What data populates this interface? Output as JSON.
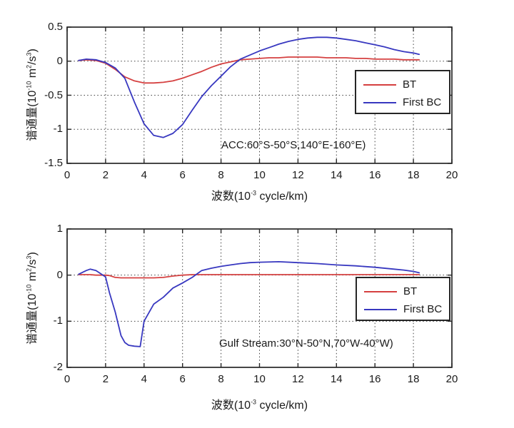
{
  "figure": {
    "background": "#ffffff",
    "axis_color": "#262626",
    "grid_color": "#3f3f3f",
    "text_color": "#1a1a1a"
  },
  "chart_data": [
    {
      "type": "line",
      "position": "top",
      "title": "",
      "xlabel": "波数(10^-3 cycle/km)",
      "xlabel_parts": [
        {
          "t": "波数(10"
        },
        {
          "t": "-3",
          "sup": true
        },
        {
          "t": " cycle/km)"
        }
      ],
      "ylabel": "谱通量(10^-10 m^2/s^3)",
      "ylabel_parts": [
        {
          "t": "谱通量(10"
        },
        {
          "t": "-10",
          "sup": true
        },
        {
          "t": " m"
        },
        {
          "t": "2",
          "sup": true
        },
        {
          "t": "/s"
        },
        {
          "t": "3",
          "sup": true
        },
        {
          "t": ")"
        }
      ],
      "annotation": "ACC:60°S-50°S,140°E-160°E)",
      "xlim": [
        0,
        20
      ],
      "ylim": [
        -1.5,
        0.5
      ],
      "xticks": [
        0,
        2,
        4,
        6,
        8,
        10,
        12,
        14,
        16,
        18,
        20
      ],
      "yticks": [
        0.5,
        0,
        -0.5,
        -1,
        -1.5
      ],
      "ytick_labels": [
        "0.5",
        "0",
        "-0.5",
        "-1",
        "-1.5"
      ],
      "grid": true,
      "legend": {
        "position": "middle-right",
        "entries": [
          "BT",
          "First BC"
        ]
      },
      "x": [
        0.6,
        1,
        1.5,
        2,
        2.5,
        3,
        3.5,
        4,
        4.5,
        5,
        5.5,
        6,
        6.5,
        7,
        7.5,
        8,
        8.5,
        9,
        9.5,
        10,
        10.5,
        11,
        11.5,
        12,
        12.5,
        13,
        13.5,
        14,
        14.5,
        15,
        15.5,
        16,
        16.5,
        17,
        17.5,
        18,
        18.3
      ],
      "series": [
        {
          "name": "BT",
          "color": "#d54040",
          "values": [
            0.01,
            0.02,
            0.01,
            -0.03,
            -0.12,
            -0.23,
            -0.29,
            -0.32,
            -0.32,
            -0.31,
            -0.29,
            -0.25,
            -0.2,
            -0.15,
            -0.09,
            -0.04,
            -0.01,
            0.02,
            0.03,
            0.04,
            0.05,
            0.05,
            0.06,
            0.06,
            0.06,
            0.06,
            0.05,
            0.05,
            0.05,
            0.04,
            0.04,
            0.03,
            0.03,
            0.03,
            0.02,
            0.02,
            0.02
          ]
        },
        {
          "name": "First BC",
          "color": "#3838c0",
          "values": [
            0.01,
            0.03,
            0.02,
            -0.02,
            -0.1,
            -0.25,
            -0.6,
            -0.92,
            -1.09,
            -1.12,
            -1.06,
            -0.93,
            -0.72,
            -0.52,
            -0.36,
            -0.22,
            -0.08,
            0.03,
            0.09,
            0.15,
            0.2,
            0.25,
            0.29,
            0.32,
            0.34,
            0.35,
            0.35,
            0.34,
            0.32,
            0.3,
            0.27,
            0.24,
            0.21,
            0.17,
            0.14,
            0.12,
            0.1
          ]
        }
      ]
    },
    {
      "type": "line",
      "position": "bottom",
      "title": "",
      "xlabel": "波数(10^-3 cycle/km)",
      "xlabel_parts": [
        {
          "t": "波数(10"
        },
        {
          "t": "-3",
          "sup": true
        },
        {
          "t": " cycle/km)"
        }
      ],
      "ylabel": "谱通量(10^-10 m^2/s^3)",
      "ylabel_parts": [
        {
          "t": "谱通量(10"
        },
        {
          "t": "-10",
          "sup": true
        },
        {
          "t": " m"
        },
        {
          "t": "2",
          "sup": true
        },
        {
          "t": "/s"
        },
        {
          "t": "3",
          "sup": true
        },
        {
          "t": ")"
        }
      ],
      "annotation": "Gulf Stream:30°N-50°N,70°W-40°W)",
      "xlim": [
        0,
        20
      ],
      "ylim": [
        -2,
        1
      ],
      "xticks": [
        0,
        2,
        4,
        6,
        8,
        10,
        12,
        14,
        16,
        18,
        20
      ],
      "yticks": [
        1,
        0,
        -1,
        -2
      ],
      "ytick_labels": [
        "1",
        "0",
        "-1",
        "-2"
      ],
      "grid": true,
      "legend": {
        "position": "middle-right",
        "entries": [
          "BT",
          "First BC"
        ]
      },
      "x": [
        0.6,
        1,
        1.2,
        1.5,
        2,
        2.2,
        2.5,
        2.8,
        3,
        3.2,
        3.5,
        3.8,
        4,
        4.5,
        5,
        5.5,
        6,
        6.5,
        7,
        7.5,
        8,
        8.5,
        9,
        9.5,
        10,
        11,
        12,
        13,
        14,
        15,
        16,
        17,
        17.5,
        18,
        18.3
      ],
      "series": [
        {
          "name": "BT",
          "color": "#d54040",
          "values": [
            0.01,
            0.01,
            0.01,
            0.0,
            0.0,
            -0.01,
            -0.05,
            -0.06,
            -0.06,
            -0.06,
            -0.06,
            -0.06,
            -0.06,
            -0.06,
            -0.05,
            -0.02,
            0.0,
            0.01,
            0.01,
            0.01,
            0.01,
            0.01,
            0.01,
            0.01,
            0.01,
            0.01,
            0.01,
            0.01,
            0.01,
            0.01,
            0.01,
            0.01,
            0.01,
            0.01,
            0.01
          ]
        },
        {
          "name": "First BC",
          "color": "#3838c0",
          "values": [
            0.02,
            0.1,
            0.13,
            0.1,
            -0.04,
            -0.38,
            -0.8,
            -1.31,
            -1.46,
            -1.52,
            -1.54,
            -1.55,
            -1.0,
            -0.63,
            -0.48,
            -0.28,
            -0.17,
            -0.05,
            0.1,
            0.15,
            0.19,
            0.22,
            0.25,
            0.27,
            0.28,
            0.29,
            0.27,
            0.25,
            0.22,
            0.2,
            0.17,
            0.13,
            0.11,
            0.08,
            0.05
          ]
        }
      ]
    }
  ]
}
